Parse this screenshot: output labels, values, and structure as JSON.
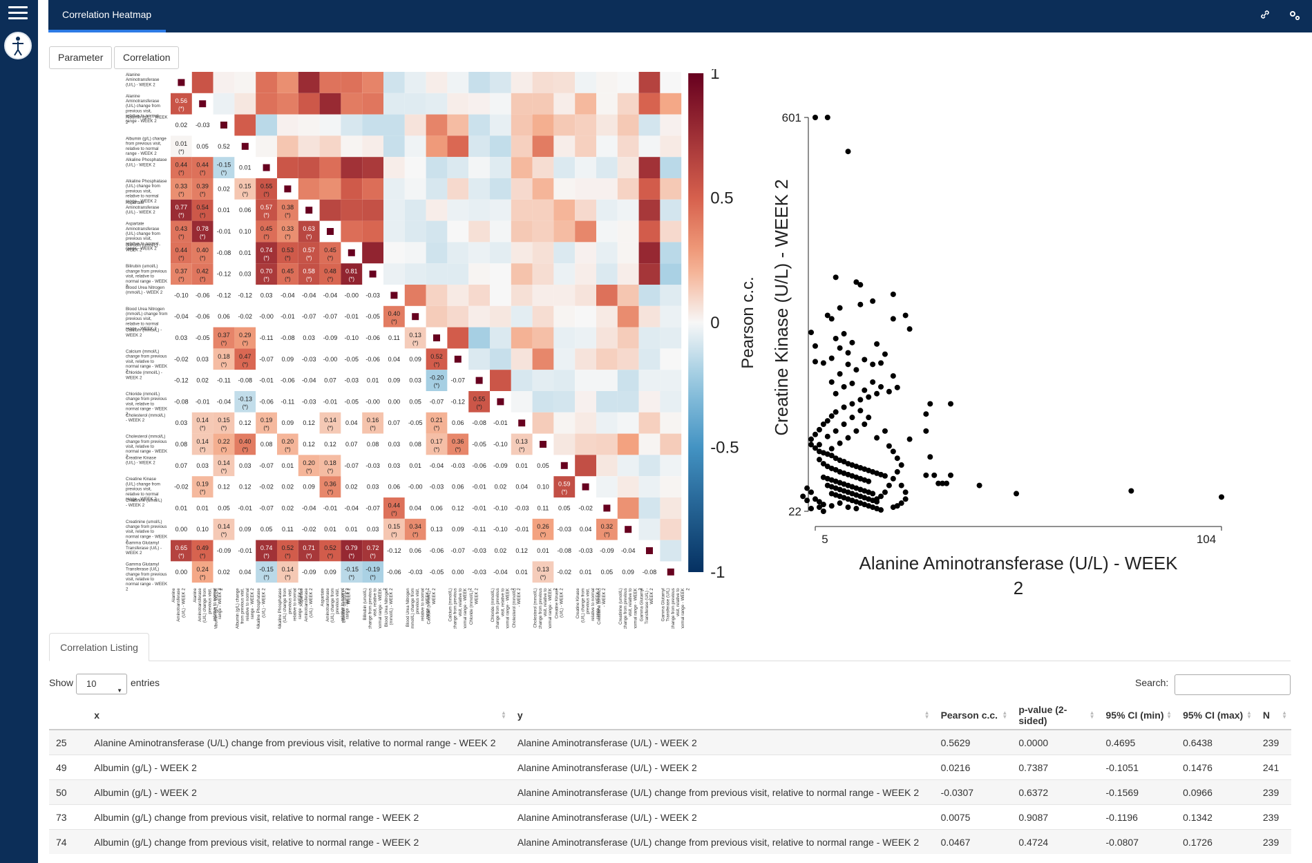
{
  "header": {
    "tab_title": "Correlation Heatmap",
    "icons": [
      "link-icon",
      "gears-icon"
    ]
  },
  "buttons": {
    "parameter": "Parameter",
    "correlation": "Correlation"
  },
  "heatmap": {
    "labels": [
      "Alanine Aminotransferase (U/L) - WEEK 2",
      "Alanine Aminotransferase (U/L) change from previous visit, relative to normal range - WEEK 2",
      "Albumin (g/L) - WEEK 2",
      "Albumin (g/L) change from previous visit, relative to normal range - WEEK 2",
      "Alkaline Phosphatase (U/L) - WEEK 2",
      "Alkaline Phosphatase (U/L) change from previous visit, relative to normal range - WEEK 2",
      "Aspartate Aminotransferase (U/L) - WEEK 2",
      "Aspartate Aminotransferase (U/L) change from previous visit, relative to normal range - WEEK 2",
      "Bilirubin (umol/L) - WEEK 2",
      "Bilirubin (umol/L) change from previous visit, relative to normal range - WEEK 2",
      "Blood Urea Nitrogen (mmol/L) - WEEK 2",
      "Blood Urea Nitrogen (mmol/L) change from previous visit, relative to normal range - WEEK 2",
      "Calcium (mmol/L) - WEEK 2",
      "Calcium (mmol/L) change from previous visit, relative to normal range - WEEK 2",
      "Chloride (mmol/L) - WEEK 2",
      "Chloride (mmol/L) change from previous visit, relative to normal range - WEEK 2",
      "Cholesterol (mmol/L) - WEEK 2",
      "Cholesterol (mmol/L) change from previous visit, relative to normal range - WEEK 2",
      "Creatine Kinase (U/L) - WEEK 2",
      "Creatine Kinase (U/L) change from previous visit, relative to normal range - WEEK 2",
      "Creatinine (umol/L) - WEEK 2",
      "Creatinine (umol/L) change from previous visit, relative to normal range - WEEK 2",
      "Gamma Glutamyl Transferase (U/L) - WEEK 2",
      "Gamma Glutamyl Transferase (U/L) change from previous visit, relative to normal range - WEEK 2"
    ],
    "lower": [
      [],
      [
        "0.56"
      ],
      [
        "0.02",
        "-0.03"
      ],
      [
        "0.01",
        "0.05",
        "0.52"
      ],
      [
        "0.44",
        "0.44",
        "-0.15",
        "0.01"
      ],
      [
        "0.33",
        "0.39",
        "0.02",
        "0.15",
        "0.55"
      ],
      [
        "0.77",
        "0.54",
        "0.01",
        "0.06",
        "0.57",
        "0.38"
      ],
      [
        "0.43",
        "0.78",
        "-0.01",
        "0.10",
        "0.45",
        "0.33",
        "0.63"
      ],
      [
        "0.44",
        "0.40",
        "-0.08",
        "0.01",
        "0.74",
        "0.53",
        "0.57",
        "0.45"
      ],
      [
        "0.37",
        "0.42",
        "-0.12",
        "0.03",
        "0.70",
        "0.45",
        "0.58",
        "0.48",
        "0.81"
      ],
      [
        "-0.10",
        "-0.06",
        "-0.12",
        "-0.12",
        "0.03",
        "-0.04",
        "-0.04",
        "-0.04",
        "-0.00",
        "-0.03"
      ],
      [
        "-0.04",
        "-0.06",
        "0.06",
        "-0.02",
        "-0.00",
        "-0.01",
        "-0.07",
        "-0.07",
        "-0.01",
        "-0.05",
        "0.40"
      ],
      [
        "0.03",
        "-0.05",
        "0.37",
        "0.29",
        "-0.11",
        "-0.08",
        "0.03",
        "-0.09",
        "-0.10",
        "-0.06",
        "0.11",
        "0.13"
      ],
      [
        "-0.02",
        "0.03",
        "0.18",
        "0.47",
        "-0.07",
        "0.09",
        "-0.03",
        "-0.00",
        "-0.05",
        "-0.06",
        "0.04",
        "0.09",
        "0.52"
      ],
      [
        "-0.12",
        "0.02",
        "-0.11",
        "-0.08",
        "-0.01",
        "-0.06",
        "-0.04",
        "0.07",
        "-0.03",
        "0.01",
        "0.09",
        "0.03",
        "-0.20",
        "-0.07"
      ],
      [
        "-0.08",
        "-0.01",
        "-0.04",
        "-0.13",
        "-0.06",
        "-0.11",
        "-0.03",
        "-0.01",
        "-0.05",
        "-0.00",
        "0.00",
        "0.05",
        "-0.07",
        "-0.12",
        "0.55"
      ],
      [
        "0.03",
        "0.14",
        "0.15",
        "0.12",
        "0.19",
        "0.09",
        "0.12",
        "0.14",
        "0.04",
        "0.16",
        "0.07",
        "-0.05",
        "0.21",
        "0.06",
        "-0.08",
        "-0.01"
      ],
      [
        "0.08",
        "0.14",
        "0.22",
        "0.40",
        "0.08",
        "0.20",
        "0.12",
        "0.12",
        "0.07",
        "0.08",
        "0.03",
        "0.08",
        "0.17",
        "0.36",
        "-0.05",
        "-0.10",
        "0.13"
      ],
      [
        "0.07",
        "0.03",
        "0.14",
        "0.03",
        "-0.07",
        "0.01",
        "0.20",
        "0.18",
        "-0.07",
        "-0.03",
        "0.03",
        "0.01",
        "-0.04",
        "-0.03",
        "-0.06",
        "-0.09",
        "0.01",
        "0.05"
      ],
      [
        "-0.02",
        "0.19",
        "0.12",
        "0.12",
        "-0.02",
        "0.02",
        "0.09",
        "0.36",
        "0.02",
        "0.03",
        "0.06",
        "-0.00",
        "-0.03",
        "0.06",
        "-0.01",
        "0.02",
        "0.04",
        "0.10",
        "0.59"
      ],
      [
        "0.01",
        "0.01",
        "0.05",
        "-0.01",
        "-0.07",
        "0.02",
        "-0.04",
        "-0.01",
        "-0.04",
        "-0.07",
        "0.44",
        "0.04",
        "0.06",
        "0.12",
        "-0.01",
        "-0.10",
        "-0.03",
        "0.11",
        "0.05",
        "-0.02"
      ],
      [
        "0.00",
        "0.10",
        "0.14",
        "0.09",
        "0.05",
        "0.11",
        "-0.02",
        "0.01",
        "0.01",
        "0.03",
        "0.15",
        "0.34",
        "0.13",
        "0.09",
        "-0.11",
        "-0.10",
        "-0.01",
        "0.26",
        "-0.03",
        "0.04",
        "0.32"
      ],
      [
        "0.65",
        "0.49",
        "-0.09",
        "-0.01",
        "0.74",
        "0.52",
        "0.71",
        "0.52",
        "0.79",
        "0.72",
        "-0.12",
        "0.06",
        "-0.06",
        "-0.07",
        "-0.03",
        "0.02",
        "0.12",
        "0.01",
        "-0.08",
        "-0.03",
        "-0.09",
        "-0.04"
      ],
      [
        "0.00",
        "0.24",
        "0.02",
        "0.04",
        "-0.15",
        "0.14",
        "-0.09",
        "0.09",
        "-0.15",
        "-0.19",
        "-0.06",
        "-0.03",
        "-0.05",
        "0.00",
        "-0.03",
        "-0.04",
        "0.01",
        "0.13",
        "-0.02",
        "0.01",
        "0.05",
        "0.09",
        "-0.08"
      ]
    ],
    "significant": [
      [],
      [
        1
      ],
      [],
      [
        1
      ],
      [
        1,
        1,
        1
      ],
      [
        1,
        1,
        0,
        1,
        1
      ],
      [
        1,
        1,
        0,
        0,
        1,
        1
      ],
      [
        1,
        1,
        0,
        0,
        1,
        1,
        1
      ],
      [
        1,
        1,
        0,
        0,
        1,
        1,
        1,
        1
      ],
      [
        1,
        1,
        0,
        0,
        1,
        1,
        1,
        1,
        1
      ],
      [],
      [
        0,
        0,
        0,
        0,
        0,
        0,
        0,
        0,
        0,
        0,
        1
      ],
      [
        0,
        0,
        1,
        1,
        0,
        0,
        0,
        0,
        0,
        0,
        0,
        1
      ],
      [
        0,
        0,
        1,
        1,
        0,
        0,
        0,
        0,
        0,
        0,
        0,
        0,
        1
      ],
      [
        0,
        0,
        0,
        0,
        0,
        0,
        0,
        0,
        0,
        0,
        0,
        0,
        1
      ],
      [
        0,
        0,
        0,
        1,
        0,
        0,
        0,
        0,
        0,
        0,
        0,
        0,
        0,
        0,
        1
      ],
      [
        0,
        1,
        1,
        0,
        1,
        0,
        0,
        1,
        0,
        1,
        0,
        0,
        1
      ],
      [
        0,
        1,
        1,
        1,
        0,
        1,
        0,
        0,
        0,
        0,
        0,
        0,
        1,
        1,
        0,
        0,
        1
      ],
      [
        0,
        0,
        1,
        0,
        0,
        0,
        1,
        1
      ],
      [
        0,
        1,
        0,
        0,
        0,
        0,
        0,
        1,
        0,
        0,
        0,
        0,
        0,
        0,
        0,
        0,
        0,
        0,
        1
      ],
      [
        0,
        0,
        0,
        0,
        0,
        0,
        0,
        0,
        0,
        0,
        1
      ],
      [
        0,
        0,
        1,
        0,
        0,
        0,
        0,
        0,
        0,
        0,
        1,
        1,
        0,
        0,
        0,
        0,
        0,
        1,
        0,
        0,
        1
      ],
      [
        1,
        1,
        0,
        0,
        1,
        1,
        1,
        1,
        1,
        1
      ],
      [
        0,
        1,
        0,
        0,
        1,
        1,
        0,
        0,
        1,
        1,
        0,
        0,
        0,
        0,
        0,
        0,
        0,
        1
      ]
    ],
    "sig_marker": "(*)",
    "colorbar": {
      "title": "Pearson c.c.",
      "ticks": [
        "1",
        "0.5",
        "0",
        "-0.5",
        "-1"
      ],
      "tick_values": [
        1,
        0.5,
        0,
        -0.5,
        -1
      ]
    }
  },
  "chart_data": {
    "type": "scatter",
    "xlabel": "Alanine Aminotransferase (U/L) - WEEK 2",
    "ylabel": "Creatine Kinase (U/L) - WEEK 2",
    "x_ticks": [
      "5",
      "104"
    ],
    "y_ticks": [
      "601",
      "22"
    ],
    "xlim": [
      5,
      104
    ],
    "ylim": [
      22,
      601
    ],
    "points": [
      [
        5,
        601
      ],
      [
        8,
        601
      ],
      [
        13,
        551
      ],
      [
        10,
        366
      ],
      [
        15,
        359
      ],
      [
        16,
        355
      ],
      [
        19,
        331
      ],
      [
        16,
        326
      ],
      [
        11,
        321
      ],
      [
        8,
        310
      ],
      [
        9,
        305
      ],
      [
        24,
        341
      ],
      [
        28,
        290
      ],
      [
        27,
        310
      ],
      [
        24,
        305
      ],
      [
        4,
        285
      ],
      [
        5,
        265
      ],
      [
        5,
        242
      ],
      [
        10,
        276
      ],
      [
        12,
        283
      ],
      [
        14,
        270
      ],
      [
        11,
        262
      ],
      [
        13,
        255
      ],
      [
        9,
        247
      ],
      [
        7,
        240
      ],
      [
        20,
        268
      ],
      [
        22,
        253
      ],
      [
        21,
        240
      ],
      [
        19,
        238
      ],
      [
        24,
        221
      ],
      [
        25,
        204
      ],
      [
        23,
        198
      ],
      [
        20,
        195
      ],
      [
        18,
        190
      ],
      [
        16,
        186
      ],
      [
        14,
        180
      ],
      [
        12,
        175
      ],
      [
        10,
        168
      ],
      [
        9,
        162
      ],
      [
        8,
        155
      ],
      [
        7,
        150
      ],
      [
        6,
        142
      ],
      [
        5,
        135
      ],
      [
        4,
        128
      ],
      [
        4,
        120
      ],
      [
        5,
        115
      ],
      [
        6,
        110
      ],
      [
        7,
        108
      ],
      [
        8,
        106
      ],
      [
        9,
        104
      ],
      [
        10,
        100
      ],
      [
        11,
        97
      ],
      [
        12,
        95
      ],
      [
        13,
        92
      ],
      [
        14,
        90
      ],
      [
        15,
        88
      ],
      [
        16,
        86
      ],
      [
        17,
        84
      ],
      [
        18,
        82
      ],
      [
        19,
        80
      ],
      [
        20,
        78
      ],
      [
        21,
        76
      ],
      [
        22,
        74
      ],
      [
        6,
        98
      ],
      [
        7,
        92
      ],
      [
        8,
        88
      ],
      [
        9,
        85
      ],
      [
        10,
        83
      ],
      [
        11,
        80
      ],
      [
        12,
        78
      ],
      [
        13,
        76
      ],
      [
        14,
        74
      ],
      [
        15,
        72
      ],
      [
        16,
        70
      ],
      [
        17,
        68
      ],
      [
        18,
        66
      ],
      [
        7,
        72
      ],
      [
        8,
        70
      ],
      [
        9,
        68
      ],
      [
        10,
        66
      ],
      [
        11,
        64
      ],
      [
        12,
        62
      ],
      [
        13,
        60
      ],
      [
        14,
        58
      ],
      [
        15,
        56
      ],
      [
        16,
        54
      ],
      [
        17,
        52
      ],
      [
        18,
        50
      ],
      [
        19,
        48
      ],
      [
        8,
        60
      ],
      [
        9,
        58
      ],
      [
        10,
        56
      ],
      [
        11,
        54
      ],
      [
        12,
        52
      ],
      [
        13,
        50
      ],
      [
        14,
        48
      ],
      [
        15,
        46
      ],
      [
        16,
        44
      ],
      [
        17,
        42
      ],
      [
        18,
        40
      ],
      [
        19,
        38
      ],
      [
        20,
        36
      ],
      [
        9,
        48
      ],
      [
        10,
        46
      ],
      [
        11,
        44
      ],
      [
        12,
        42
      ],
      [
        13,
        40
      ],
      [
        14,
        38
      ],
      [
        15,
        36
      ],
      [
        16,
        34
      ],
      [
        17,
        32
      ],
      [
        18,
        30
      ],
      [
        19,
        28
      ],
      [
        20,
        26
      ],
      [
        21,
        24
      ],
      [
        3,
        56
      ],
      [
        4,
        50
      ],
      [
        2,
        44
      ],
      [
        3,
        38
      ],
      [
        5,
        40
      ],
      [
        6,
        36
      ],
      [
        7,
        32
      ],
      [
        6,
        28
      ],
      [
        4,
        26
      ],
      [
        7,
        22
      ],
      [
        9,
        30
      ],
      [
        11,
        34
      ],
      [
        13,
        28
      ],
      [
        15,
        26
      ],
      [
        6,
        120
      ],
      [
        8,
        132
      ],
      [
        10,
        140
      ],
      [
        12,
        150
      ],
      [
        14,
        160
      ],
      [
        16,
        170
      ],
      [
        18,
        160
      ],
      [
        17,
        150
      ],
      [
        15,
        140
      ],
      [
        13,
        130
      ],
      [
        11,
        122
      ],
      [
        9,
        114
      ],
      [
        20,
        130
      ],
      [
        22,
        140
      ],
      [
        23,
        118
      ],
      [
        24,
        110
      ],
      [
        25,
        100
      ],
      [
        26,
        90
      ],
      [
        25,
        80
      ],
      [
        24,
        70
      ],
      [
        23,
        60
      ],
      [
        22,
        50
      ],
      [
        21,
        44
      ],
      [
        20,
        40
      ],
      [
        26,
        60
      ],
      [
        27,
        50
      ],
      [
        27,
        40
      ],
      [
        26,
        34
      ],
      [
        25,
        30
      ],
      [
        24,
        28
      ],
      [
        28,
        128
      ],
      [
        33,
        102
      ],
      [
        32,
        75
      ],
      [
        34,
        75
      ],
      [
        35,
        63
      ],
      [
        36,
        63
      ],
      [
        37,
        63
      ],
      [
        38,
        75
      ],
      [
        32,
        140
      ],
      [
        32,
        165
      ],
      [
        33,
        180
      ],
      [
        38,
        180
      ],
      [
        45,
        60
      ],
      [
        54,
        48
      ],
      [
        82,
        52
      ],
      [
        104,
        43
      ],
      [
        12,
        205
      ],
      [
        14,
        210
      ],
      [
        17,
        200
      ],
      [
        19,
        212
      ],
      [
        21,
        205
      ],
      [
        10,
        195
      ],
      [
        9,
        212
      ],
      [
        11,
        224
      ],
      [
        15,
        230
      ],
      [
        13,
        238
      ],
      [
        17,
        245
      ]
    ]
  },
  "listing": {
    "tab": "Correlation Listing",
    "show": "Show",
    "entries_value": "10",
    "entries": "entries",
    "search_label": "Search:",
    "columns": [
      "",
      "x",
      "y",
      "Pearson c.c.",
      "p-value (2-sided)",
      "95% CI (min)",
      "95% CI (max)",
      "N"
    ],
    "rows": [
      [
        "25",
        "Alanine Aminotransferase (U/L) change from previous visit, relative to normal range - WEEK 2",
        "Alanine Aminotransferase (U/L) - WEEK 2",
        "0.5629",
        "0.0000",
        "0.4695",
        "0.6438",
        "239"
      ],
      [
        "49",
        "Albumin (g/L) - WEEK 2",
        "Alanine Aminotransferase (U/L) - WEEK 2",
        "0.0216",
        "0.7387",
        "-0.1051",
        "0.1476",
        "241"
      ],
      [
        "50",
        "Albumin (g/L) - WEEK 2",
        "Alanine Aminotransferase (U/L) change from previous visit, relative to normal range - WEEK 2",
        "-0.0307",
        "0.6372",
        "-0.1569",
        "0.0966",
        "239"
      ],
      [
        "73",
        "Albumin (g/L) change from previous visit, relative to normal range - WEEK 2",
        "Alanine Aminotransferase (U/L) - WEEK 2",
        "0.0075",
        "0.9087",
        "-0.1196",
        "0.1342",
        "239"
      ],
      [
        "74",
        "Albumin (g/L) change from previous visit, relative to normal range - WEEK 2",
        "Alanine Aminotransferase (U/L) change from previous visit, relative to normal range - WEEK 2",
        "0.0467",
        "0.4724",
        "-0.0807",
        "0.1726",
        "239"
      ]
    ]
  }
}
